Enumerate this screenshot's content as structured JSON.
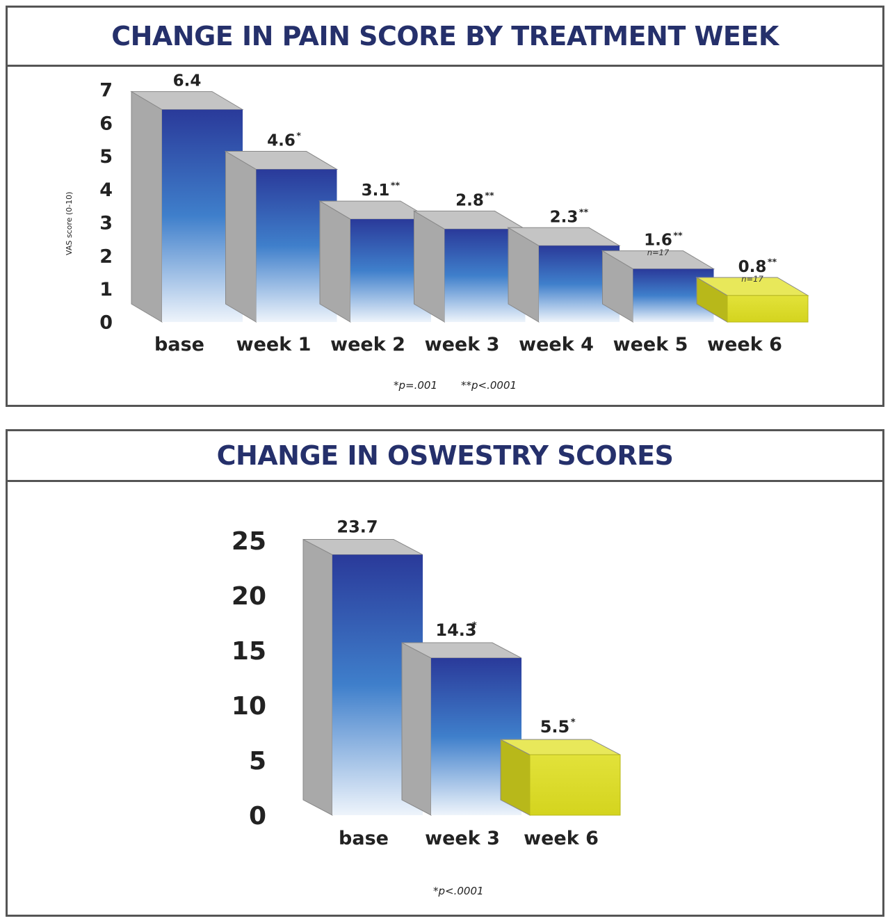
{
  "charts": [
    {
      "title": "CHANGE IN PAIN SCORE BY TREATMENT WEEK",
      "ylabel": "VAS score (0-10)",
      "footnotes": [
        "*p=.001",
        "**p<.0001"
      ]
    },
    {
      "title": "CHANGE IN OSWESTRY SCORES",
      "ylabel": "",
      "footnotes": [
        "*p<.0001"
      ]
    }
  ],
  "chart_data": [
    {
      "type": "bar",
      "title": "CHANGE IN PAIN SCORE BY TREATMENT WEEK",
      "ylabel": "VAS score (0-10)",
      "categories": [
        "base",
        "week 1",
        "week 2",
        "week 3",
        "week 4",
        "week 5",
        "week 6"
      ],
      "values": [
        6.4,
        4.6,
        3.1,
        2.8,
        2.3,
        1.6,
        0.8
      ],
      "value_labels": [
        "6.4",
        "4.6",
        "3.1",
        "2.8",
        "2.3",
        "1.6",
        "0.8"
      ],
      "significance": [
        "",
        "*",
        "**",
        "**",
        "**",
        "**",
        "**"
      ],
      "sample_notes": [
        "",
        "",
        "",
        "",
        "",
        "n=17",
        "n=17"
      ],
      "yticks": [
        0,
        1,
        2,
        3,
        4,
        5,
        6,
        7
      ],
      "ylim": [
        0,
        7
      ],
      "highlight_color": "#d9d92a",
      "bar_color_top": "#2a3a9a",
      "bar_color_bottom": "#eef4fb",
      "side_color": "#a9a9a9",
      "highlight_index": 6,
      "footnotes": [
        "*p=.001",
        "**p<.0001"
      ]
    },
    {
      "type": "bar",
      "title": "CHANGE IN OSWESTRY SCORES",
      "categories": [
        "base",
        "week 3",
        "week 6"
      ],
      "values": [
        23.7,
        14.3,
        5.5
      ],
      "value_labels": [
        "23.7",
        "14.3",
        "5.5"
      ],
      "significance": [
        "",
        "*",
        "*"
      ],
      "yticks": [
        0,
        5,
        10,
        15,
        20,
        25
      ],
      "ylim": [
        0,
        25
      ],
      "highlight_color": "#d9d92a",
      "bar_color_top": "#2a3a9a",
      "bar_color_bottom": "#eef4fb",
      "side_color": "#a9a9a9",
      "highlight_index": 2,
      "footnotes": [
        "*p<.0001"
      ]
    }
  ]
}
